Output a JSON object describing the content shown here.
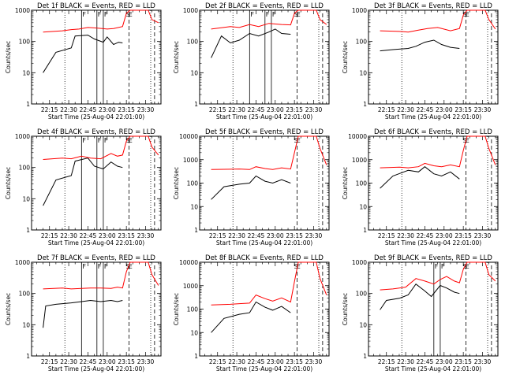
{
  "figure": {
    "xlabel": "Start Time (25-Aug-04 22:01:00)",
    "ylabel": "Counts/sec"
  },
  "chart_data": [
    {
      "type": "line",
      "title": "Det 1f BLACK = Events, RED = LLD",
      "ylim": [
        1,
        1000
      ],
      "ylabel": "Counts/sec",
      "xlabel": "Start Time (25-Aug-04 22:01:00)",
      "yticks": [
        1,
        10,
        100,
        1000
      ],
      "yticklabels": [
        "1",
        "10",
        "100",
        "1000"
      ],
      "xticks": [
        "22:15",
        "22:30",
        "22:45",
        "23:00",
        "23:15",
        "23:30"
      ],
      "markers": [
        {
          "label": "F",
          "x": "22:40"
        },
        {
          "label": "F",
          "x": "22:52"
        },
        {
          "label": "F",
          "x": "22:57"
        },
        {
          "label": "S",
          "x": "23:14"
        },
        {
          "label": "E",
          "x": "23:16"
        }
      ],
      "series": [
        {
          "color": "#000000",
          "x": [
            "22:10",
            "22:20",
            "22:32",
            "22:35",
            "22:45",
            "22:50",
            "22:57",
            "23:00",
            "23:05",
            "23:09",
            "23:12"
          ],
          "y": [
            10,
            45,
            62,
            150,
            160,
            120,
            95,
            140,
            80,
            95,
            90
          ]
        },
        {
          "color": "#ff0000",
          "x": [
            "22:10",
            "22:25",
            "22:32",
            "22:38",
            "22:45",
            "22:52",
            "23:00",
            "23:05",
            "23:12",
            "23:15",
            "23:18",
            "23:32",
            "23:35",
            "23:40"
          ],
          "y": [
            200,
            220,
            240,
            250,
            280,
            270,
            250,
            260,
            300,
            800,
            1000,
            1000,
            500,
            400
          ]
        }
      ]
    },
    {
      "type": "line",
      "title": "Det 2f BLACK = Events, RED = LLD",
      "ylim": [
        1,
        1000
      ],
      "ylabel": "Counts/sec",
      "xlabel": "Start Time (25-Aug-04 22:01:00)",
      "yticks": [
        1,
        10,
        100,
        1000
      ],
      "yticklabels": [
        "1",
        "10",
        "100",
        "1000"
      ],
      "xticks": [
        "22:15",
        "22:30",
        "22:45",
        "23:00",
        "23:15",
        "23:30"
      ],
      "markers": [
        {
          "label": "F",
          "x": "22:40"
        },
        {
          "label": "F",
          "x": "22:52"
        },
        {
          "label": "F",
          "x": "22:57"
        },
        {
          "label": "S",
          "x": "23:14"
        },
        {
          "label": "E",
          "x": "23:16"
        }
      ],
      "series": [
        {
          "color": "#000000",
          "x": [
            "22:10",
            "22:18",
            "22:25",
            "22:32",
            "22:40",
            "22:47",
            "22:55",
            "23:00",
            "23:05",
            "23:12"
          ],
          "y": [
            30,
            150,
            90,
            110,
            180,
            150,
            200,
            250,
            180,
            170
          ]
        },
        {
          "color": "#ff0000",
          "x": [
            "22:10",
            "22:25",
            "22:32",
            "22:40",
            "22:47",
            "22:55",
            "23:05",
            "23:12",
            "23:15",
            "23:18",
            "23:32",
            "23:35",
            "23:40"
          ],
          "y": [
            250,
            300,
            280,
            350,
            300,
            380,
            350,
            340,
            800,
            1000,
            1000,
            500,
            350
          ]
        }
      ]
    },
    {
      "type": "line",
      "title": "Det 3f BLACK = Events, RED = LLD",
      "ylim": [
        1,
        1000
      ],
      "ylabel": "Counts/sec",
      "xlabel": "Start Time (25-Aug-04 22:01:00)",
      "yticks": [
        1,
        10,
        100,
        1000
      ],
      "yticklabels": [
        "1",
        "10",
        "100",
        "1000"
      ],
      "xticks": [
        "22:15",
        "22:30",
        "22:45",
        "23:00",
        "23:15",
        "23:30"
      ],
      "markers": [
        {
          "label": "S",
          "x": "23:14"
        },
        {
          "label": "E",
          "x": "23:16"
        }
      ],
      "series": [
        {
          "color": "#000000",
          "x": [
            "22:10",
            "22:20",
            "22:32",
            "22:38",
            "22:45",
            "22:52",
            "22:58",
            "23:05",
            "23:12"
          ],
          "y": [
            50,
            55,
            60,
            70,
            95,
            110,
            80,
            65,
            60
          ]
        },
        {
          "color": "#ff0000",
          "x": [
            "22:10",
            "22:25",
            "22:32",
            "22:40",
            "22:47",
            "22:55",
            "23:05",
            "23:12",
            "23:15",
            "23:18",
            "23:32",
            "23:35",
            "23:40"
          ],
          "y": [
            220,
            210,
            200,
            230,
            260,
            280,
            220,
            260,
            700,
            1000,
            1000,
            500,
            250
          ]
        }
      ]
    },
    {
      "type": "line",
      "title": "Det 4f BLACK = Events, RED = LLD",
      "ylim": [
        1,
        1000
      ],
      "ylabel": "Counts/sec",
      "xlabel": "Start Time (25-Aug-04 22:01:00)",
      "yticks": [
        1,
        10,
        100,
        1000
      ],
      "yticklabels": [
        "1",
        "10",
        "100",
        "1000"
      ],
      "xticks": [
        "22:15",
        "22:30",
        "22:45",
        "23:00",
        "23:15",
        "23:30"
      ],
      "markers": [
        {
          "label": "F",
          "x": "22:40"
        },
        {
          "label": "F",
          "x": "22:52"
        },
        {
          "label": "F",
          "x": "22:57"
        },
        {
          "label": "S",
          "x": "23:14"
        },
        {
          "label": "E",
          "x": "23:16"
        }
      ],
      "series": [
        {
          "color": "#000000",
          "x": [
            "22:10",
            "22:20",
            "22:32",
            "22:35",
            "22:45",
            "22:50",
            "22:57",
            "23:03",
            "23:08",
            "23:12"
          ],
          "y": [
            6,
            40,
            55,
            160,
            200,
            110,
            90,
            150,
            110,
            100
          ]
        },
        {
          "color": "#ff0000",
          "x": [
            "22:10",
            "22:25",
            "22:32",
            "22:40",
            "22:47",
            "22:55",
            "23:03",
            "23:08",
            "23:12",
            "23:15",
            "23:18",
            "23:32",
            "23:35",
            "23:40"
          ],
          "y": [
            180,
            200,
            190,
            230,
            200,
            190,
            280,
            230,
            250,
            700,
            1000,
            1000,
            450,
            250
          ]
        }
      ]
    },
    {
      "type": "line",
      "title": "Det 5f BLACK = Events, RED = LLD",
      "ylim": [
        1,
        10000
      ],
      "ylabel": "Counts/sec",
      "xlabel": "Start Time (25-Aug-04 22:01:00)",
      "yticks": [
        1,
        10,
        100,
        1000,
        10000
      ],
      "yticklabels": [
        "1",
        "10",
        "100",
        "1000",
        "10000"
      ],
      "xticks": [
        "22:15",
        "22:30",
        "22:45",
        "23:00",
        "23:15",
        "23:30"
      ],
      "markers": [
        {
          "label": "S",
          "x": "23:14"
        },
        {
          "label": "E",
          "x": "23:16"
        }
      ],
      "series": [
        {
          "color": "#000000",
          "x": [
            "22:10",
            "22:20",
            "22:32",
            "22:40",
            "22:45",
            "22:52",
            "22:58",
            "23:05",
            "23:12"
          ],
          "y": [
            20,
            70,
            90,
            100,
            200,
            120,
            100,
            140,
            100
          ]
        },
        {
          "color": "#ff0000",
          "x": [
            "22:10",
            "22:25",
            "22:32",
            "22:40",
            "22:45",
            "22:52",
            "22:58",
            "23:05",
            "23:12",
            "23:15",
            "23:18",
            "23:32",
            "23:35",
            "23:40"
          ],
          "y": [
            380,
            390,
            400,
            380,
            500,
            420,
            380,
            450,
            400,
            2000,
            10000,
            10000,
            3000,
            600
          ]
        }
      ]
    },
    {
      "type": "line",
      "title": "Det 6f BLACK = Events, RED = LLD",
      "ylim": [
        1,
        10000
      ],
      "ylabel": "Counts/sec",
      "xlabel": "Start Time (25-Aug-04 22:01:00)",
      "yticks": [
        1,
        10,
        100,
        1000,
        10000
      ],
      "yticklabels": [
        "1",
        "10",
        "100",
        "1000",
        "10000"
      ],
      "xticks": [
        "22:15",
        "22:30",
        "22:45",
        "23:00",
        "23:15",
        "23:30"
      ],
      "markers": [
        {
          "label": "S",
          "x": "23:14"
        },
        {
          "label": "E",
          "x": "23:16"
        }
      ],
      "series": [
        {
          "color": "#000000",
          "x": [
            "22:10",
            "22:20",
            "22:32",
            "22:40",
            "22:45",
            "22:52",
            "22:58",
            "23:05",
            "23:12"
          ],
          "y": [
            60,
            200,
            350,
            300,
            500,
            250,
            200,
            300,
            150
          ]
        },
        {
          "color": "#ff0000",
          "x": [
            "22:10",
            "22:25",
            "22:32",
            "22:40",
            "22:45",
            "22:52",
            "22:58",
            "23:05",
            "23:12",
            "23:15",
            "23:18",
            "23:32",
            "23:35",
            "23:40"
          ],
          "y": [
            450,
            480,
            450,
            500,
            700,
            550,
            500,
            600,
            500,
            2500,
            10000,
            10000,
            3000,
            600
          ]
        }
      ]
    },
    {
      "type": "line",
      "title": "Det 7f BLACK = Events, RED = LLD",
      "ylim": [
        1,
        1000
      ],
      "ylabel": "Counts/sec",
      "xlabel": "Start Time (25-Aug-04 22:01:00)",
      "yticks": [
        1,
        10,
        100,
        1000
      ],
      "yticklabels": [
        "1",
        "10",
        "100",
        "1000"
      ],
      "xticks": [
        "22:15",
        "22:30",
        "22:45",
        "23:00",
        "23:15",
        "23:30"
      ],
      "markers": [
        {
          "label": "F",
          "x": "22:40"
        },
        {
          "label": "F",
          "x": "22:52"
        },
        {
          "label": "F",
          "x": "22:57"
        },
        {
          "label": "S",
          "x": "23:14"
        },
        {
          "label": "E",
          "x": "23:16"
        }
      ],
      "series": [
        {
          "color": "#000000",
          "x": [
            "22:10",
            "22:12",
            "22:20",
            "22:32",
            "22:40",
            "22:47",
            "22:55",
            "23:03",
            "23:08",
            "23:12"
          ],
          "y": [
            8,
            40,
            45,
            50,
            55,
            60,
            55,
            60,
            55,
            60
          ]
        },
        {
          "color": "#ff0000",
          "x": [
            "22:10",
            "22:25",
            "22:32",
            "22:40",
            "22:47",
            "22:55",
            "23:03",
            "23:08",
            "23:12",
            "23:15",
            "23:18",
            "23:32",
            "23:35",
            "23:40"
          ],
          "y": [
            140,
            150,
            140,
            145,
            150,
            150,
            145,
            160,
            150,
            500,
            1000,
            1000,
            400,
            180
          ]
        }
      ]
    },
    {
      "type": "line",
      "title": "Det 8f BLACK = Events, RED = LLD",
      "ylim": [
        1,
        10000
      ],
      "ylabel": "Counts/sec",
      "xlabel": "Start Time (25-Aug-04 22:01:00)",
      "yticks": [
        1,
        10,
        100,
        1000,
        10000
      ],
      "yticklabels": [
        "1",
        "10",
        "100",
        "1000",
        "10000"
      ],
      "xticks": [
        "22:15",
        "22:30",
        "22:45",
        "23:00",
        "23:15",
        "23:30"
      ],
      "markers": [
        {
          "label": "S",
          "x": "23:14"
        },
        {
          "label": "E",
          "x": "23:16"
        }
      ],
      "series": [
        {
          "color": "#000000",
          "x": [
            "22:10",
            "22:20",
            "22:32",
            "22:40",
            "22:45",
            "22:52",
            "22:58",
            "23:05",
            "23:12"
          ],
          "y": [
            10,
            40,
            60,
            70,
            200,
            120,
            90,
            130,
            70
          ]
        },
        {
          "color": "#ff0000",
          "x": [
            "22:10",
            "22:25",
            "22:32",
            "22:40",
            "22:45",
            "22:52",
            "22:58",
            "23:05",
            "23:12",
            "23:15",
            "23:18",
            "23:32",
            "23:35",
            "23:40"
          ],
          "y": [
            150,
            160,
            170,
            180,
            400,
            280,
            220,
            300,
            200,
            1500,
            10000,
            10000,
            2000,
            400
          ]
        }
      ]
    },
    {
      "type": "line",
      "title": "Det 9f BLACK = Events, RED = LLD",
      "ylim": [
        1,
        1000
      ],
      "ylabel": "Counts/sec",
      "xlabel": "Start Time (25-Aug-04 22:01:00)",
      "yticks": [
        1,
        10,
        100,
        1000
      ],
      "yticklabels": [
        "1",
        "10",
        "100",
        "1000"
      ],
      "xticks": [
        "22:15",
        "22:30",
        "22:45",
        "23:00",
        "23:15",
        "23:30"
      ],
      "markers": [
        {
          "label": "F",
          "x": "22:52"
        },
        {
          "label": "F",
          "x": "22:57"
        },
        {
          "label": "S",
          "x": "23:14"
        },
        {
          "label": "E",
          "x": "23:16"
        }
      ],
      "series": [
        {
          "color": "#000000",
          "x": [
            "22:10",
            "22:15",
            "22:25",
            "22:32",
            "22:38",
            "22:45",
            "22:50",
            "22:57",
            "23:02",
            "23:08",
            "23:12"
          ],
          "y": [
            30,
            60,
            70,
            90,
            200,
            120,
            80,
            180,
            150,
            110,
            100
          ]
        },
        {
          "color": "#ff0000",
          "x": [
            "22:10",
            "22:20",
            "22:30",
            "22:38",
            "22:45",
            "22:52",
            "22:57",
            "23:02",
            "23:08",
            "23:12",
            "23:15",
            "23:18",
            "23:32",
            "23:35",
            "23:40"
          ],
          "y": [
            130,
            140,
            160,
            300,
            250,
            200,
            280,
            350,
            250,
            220,
            600,
            1000,
            1000,
            400,
            250
          ]
        }
      ]
    }
  ]
}
